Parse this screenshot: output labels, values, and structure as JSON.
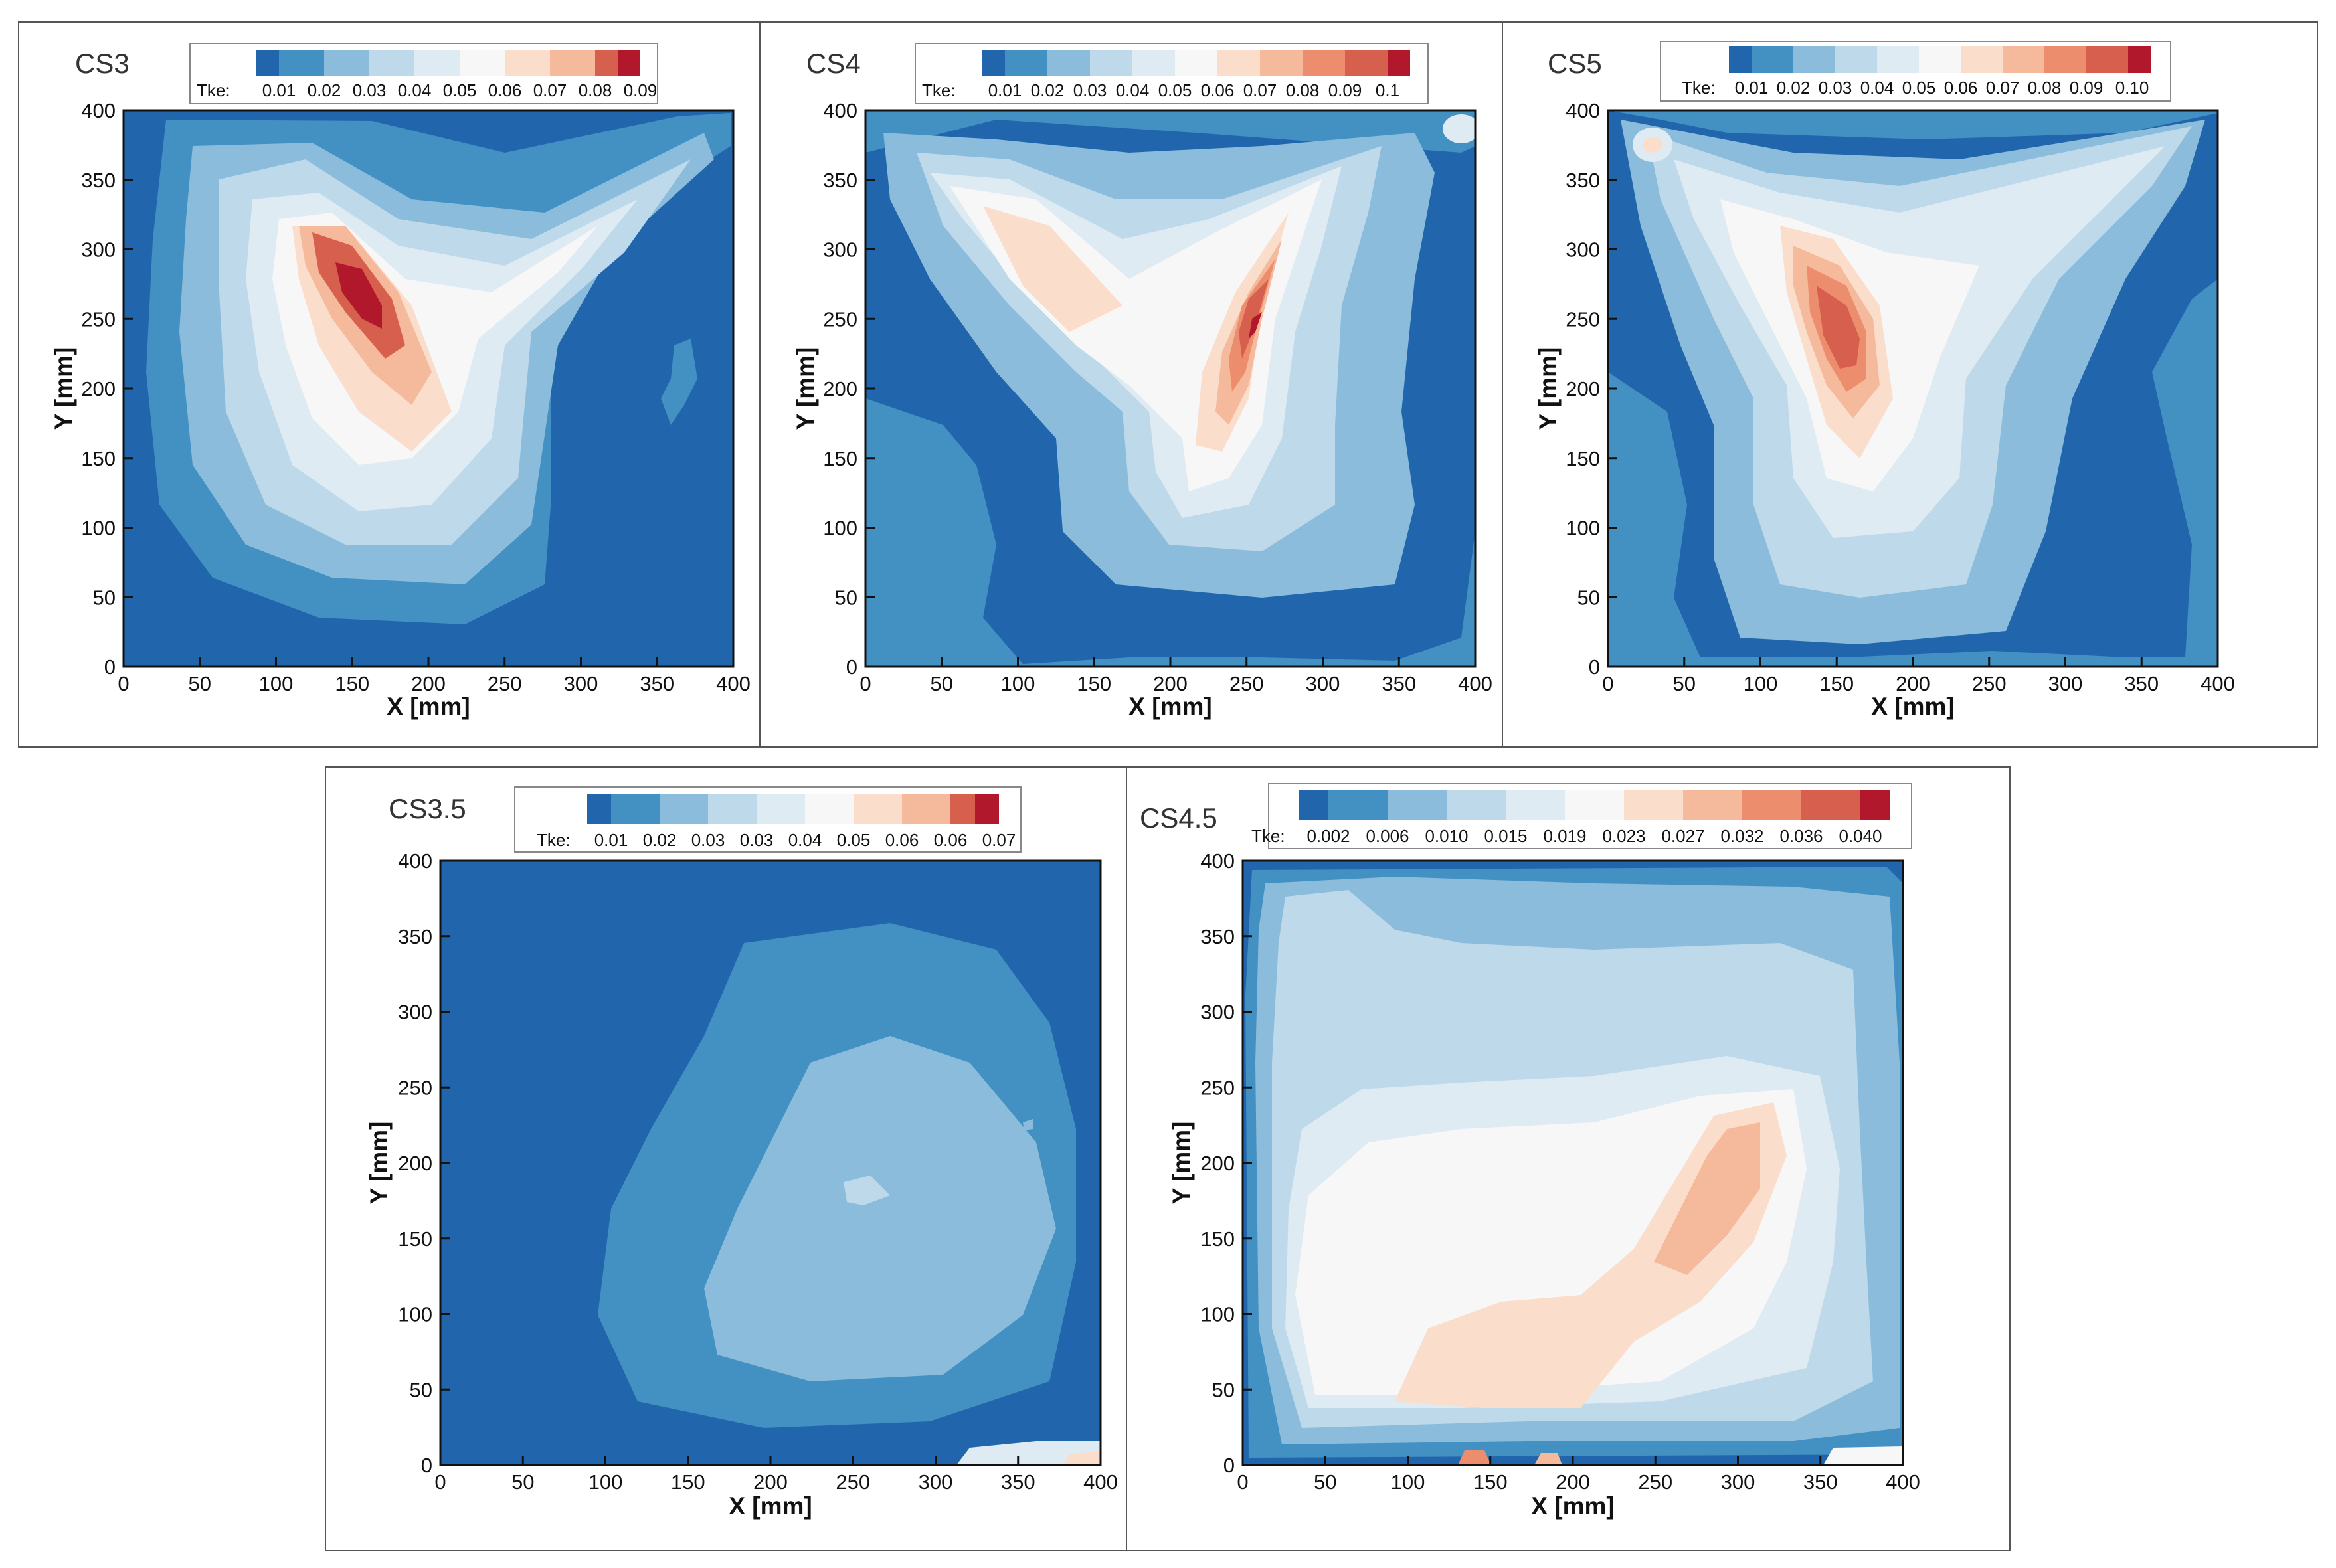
{
  "figure": {
    "colormap": [
      "#2166ac",
      "#4390c3",
      "#8bbcdc",
      "#bdd9ea",
      "#deebf3",
      "#f7f7f7",
      "#fbddcc",
      "#f5b99b",
      "#ec8d6e",
      "#d6604d",
      "#b2182b"
    ]
  },
  "chart_data": [
    {
      "type": "contour",
      "panel": "CS3",
      "title": "CS3",
      "colorbar": {
        "label": "Tke:",
        "levels": [
          "0.01",
          "0.02",
          "0.03",
          "0.04",
          "0.05",
          "0.06",
          "0.07",
          "0.08",
          "0.09"
        ],
        "colors": [
          "#2166ac",
          "#4390c3",
          "#8bbcdc",
          "#bdd9ea",
          "#deebf3",
          "#f7f7f7",
          "#fbddcc",
          "#f5b99b",
          "#d6604d",
          "#b2182b"
        ]
      },
      "xlabel": "X [mm]",
      "ylabel": "Y [mm]",
      "xlim": [
        0,
        400
      ],
      "ylim": [
        0,
        400
      ],
      "xticks": [
        "0",
        "50",
        "100",
        "150",
        "200",
        "250",
        "300",
        "350",
        "400"
      ],
      "yticks": [
        "0",
        "50",
        "100",
        "150",
        "200",
        "250",
        "300",
        "350",
        "400"
      ],
      "peak_location_mm": [
        155,
        270
      ],
      "peak_level": 9
    },
    {
      "type": "contour",
      "panel": "CS4",
      "title": "CS4",
      "colorbar": {
        "label": "Tke:",
        "levels": [
          "0.01",
          "0.02",
          "0.03",
          "0.04",
          "0.05",
          "0.06",
          "0.07",
          "0.08",
          "0.09",
          "0.1"
        ],
        "colors": [
          "#2166ac",
          "#4390c3",
          "#8bbcdc",
          "#bdd9ea",
          "#deebf3",
          "#f7f7f7",
          "#fbddcc",
          "#f5b99b",
          "#ec8d6e",
          "#d6604d",
          "#b2182b"
        ]
      },
      "xlabel": "X [mm]",
      "ylabel": "Y [mm]",
      "xlim": [
        0,
        400
      ],
      "ylim": [
        0,
        400
      ],
      "xticks": [
        "0",
        "50",
        "100",
        "150",
        "200",
        "250",
        "300",
        "350",
        "400"
      ],
      "yticks": [
        "0",
        "50",
        "100",
        "150",
        "200",
        "250",
        "300",
        "350",
        "400"
      ],
      "peak_location_mm": [
        270,
        240
      ],
      "peak_level": 9
    },
    {
      "type": "contour",
      "panel": "CS5",
      "title": "CS5",
      "colorbar": {
        "label": "Tke:",
        "levels": [
          "0.01",
          "0.02",
          "0.03",
          "0.04",
          "0.05",
          "0.06",
          "0.07",
          "0.08",
          "0.09",
          "0.10"
        ],
        "colors": [
          "#2166ac",
          "#4390c3",
          "#8bbcdc",
          "#bdd9ea",
          "#deebf3",
          "#f7f7f7",
          "#fbddcc",
          "#f5b99b",
          "#ec8d6e",
          "#d6604d",
          "#b2182b"
        ]
      },
      "xlabel": "X [mm]",
      "ylabel": "Y [mm]",
      "xlim": [
        0,
        400
      ],
      "ylim": [
        0,
        400
      ],
      "xticks": [
        "0",
        "50",
        "100",
        "150",
        "200",
        "250",
        "300",
        "350",
        "400"
      ],
      "yticks": [
        "0",
        "50",
        "100",
        "150",
        "200",
        "250",
        "300",
        "350",
        "400"
      ],
      "peak_location_mm": [
        150,
        230
      ],
      "peak_level": 8
    },
    {
      "type": "contour",
      "panel": "CS3.5",
      "title": "CS3.5",
      "colorbar": {
        "label": "Tke:",
        "levels": [
          "0.01",
          "0.02",
          "0.03",
          "0.03",
          "0.04",
          "0.05",
          "0.06",
          "0.06",
          "0.07"
        ],
        "colors": [
          "#2166ac",
          "#4390c3",
          "#8bbcdc",
          "#bdd9ea",
          "#deebf3",
          "#f7f7f7",
          "#fbddcc",
          "#f5b99b",
          "#d6604d",
          "#b2182b"
        ]
      },
      "xlabel": "X [mm]",
      "ylabel": "Y [mm]",
      "xlim": [
        0,
        400
      ],
      "ylim": [
        0,
        400
      ],
      "xticks": [
        "0",
        "50",
        "100",
        "150",
        "200",
        "250",
        "300",
        "350",
        "400"
      ],
      "yticks": [
        "0",
        "50",
        "100",
        "150",
        "200",
        "250",
        "300",
        "350",
        "400"
      ],
      "peak_location_mm": [
        250,
        180
      ],
      "peak_level": 3
    },
    {
      "type": "contour",
      "panel": "CS4.5",
      "title": "CS4.5",
      "colorbar": {
        "label": "Tke:",
        "levels": [
          "0.002",
          "0.006",
          "0.010",
          "0.015",
          "0.019",
          "0.023",
          "0.027",
          "0.032",
          "0.036",
          "0.040"
        ],
        "colors": [
          "#2166ac",
          "#4390c3",
          "#8bbcdc",
          "#bdd9ea",
          "#deebf3",
          "#f7f7f7",
          "#fbddcc",
          "#f5b99b",
          "#ec8d6e",
          "#d6604d",
          "#b2182b"
        ]
      },
      "xlabel": "X [mm]",
      "ylabel": "Y [mm]",
      "xlim": [
        0,
        400
      ],
      "ylim": [
        0,
        400
      ],
      "xticks": [
        "0",
        "50",
        "100",
        "150",
        "200",
        "250",
        "300",
        "350",
        "400"
      ],
      "yticks": [
        "0",
        "50",
        "100",
        "150",
        "200",
        "250",
        "300",
        "350",
        "400"
      ],
      "peak_location_mm": [
        275,
        190
      ],
      "peak_level": 7
    }
  ]
}
